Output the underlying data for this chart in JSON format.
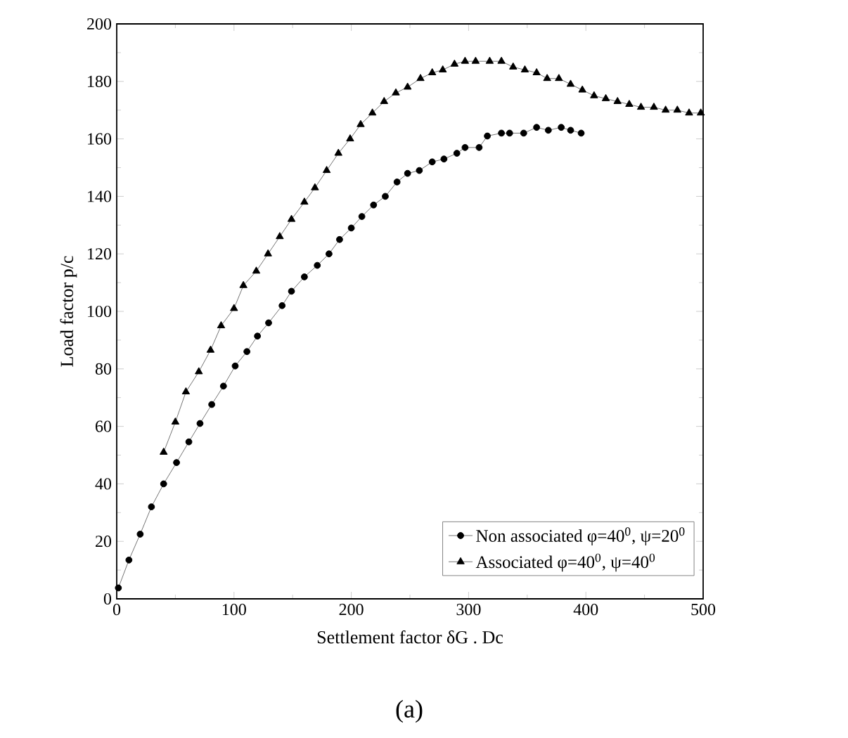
{
  "chart_data": {
    "type": "line",
    "xlabel": "Settlement factor δG . Dc",
    "ylabel": "Load factor p/c",
    "annotations": [
      "(a)"
    ],
    "xlim": [
      0,
      500
    ],
    "ylim": [
      0,
      200
    ],
    "xticks": [
      0,
      100,
      200,
      300,
      400,
      500
    ],
    "yticks": [
      0,
      20,
      40,
      60,
      80,
      100,
      120,
      140,
      160,
      180,
      200
    ],
    "grid": false,
    "legend": "bottom right",
    "series": [
      {
        "name": "Non associated φ=40$^{0}$, ψ=20$^{0}$",
        "color": "#000000",
        "marker": "circle",
        "x": [
          1.4,
          10.4,
          20,
          29.6,
          40,
          51,
          61.5,
          71,
          81,
          91,
          101,
          111,
          120,
          129.5,
          141,
          149,
          160,
          171,
          181,
          190,
          200,
          209,
          219,
          229,
          239,
          248,
          258,
          269,
          279,
          290,
          297,
          309,
          316,
          328,
          335,
          347,
          358,
          368,
          379,
          387,
          396
        ],
        "values": [
          3.8,
          13.5,
          22.5,
          32,
          40,
          47.4,
          54.6,
          61,
          67.6,
          74,
          81,
          86,
          91.4,
          96,
          102,
          107,
          112,
          116,
          120,
          125,
          129,
          133,
          137,
          140,
          145,
          148,
          149,
          152,
          153,
          155,
          157,
          157,
          161,
          162,
          162,
          162,
          164,
          163,
          164,
          163,
          162
        ]
      },
      {
        "name": "Associated φ=40$^{0}$, ψ=40$^{0}$",
        "color": "#000000",
        "marker": "triangle",
        "x": [
          40,
          50,
          59,
          70,
          80,
          89,
          100,
          108,
          119,
          129,
          139,
          149,
          160,
          169,
          179,
          189,
          199,
          208,
          218,
          228,
          238,
          248,
          259,
          269,
          278,
          288,
          297,
          306,
          318,
          328,
          338,
          348,
          358,
          367,
          377,
          387,
          397,
          407,
          417,
          427,
          437,
          447,
          458,
          468,
          478,
          488,
          498
        ],
        "values": [
          51,
          61.5,
          72,
          79,
          86.5,
          95,
          101,
          109,
          114,
          120,
          126,
          132,
          138,
          143,
          149,
          155,
          160,
          165,
          169,
          173,
          176,
          178,
          181,
          183,
          184,
          186,
          187,
          187,
          187,
          187,
          185,
          184,
          183,
          181,
          181,
          179,
          177,
          175,
          174,
          173,
          172,
          171,
          171,
          170,
          170,
          169,
          169
        ]
      }
    ]
  }
}
